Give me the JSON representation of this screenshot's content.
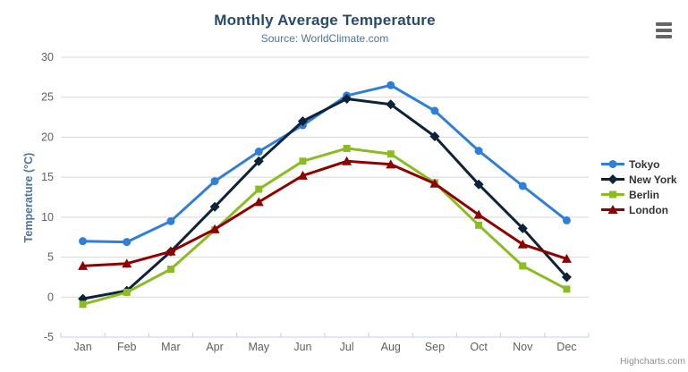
{
  "title": {
    "text": "Monthly Average Temperature"
  },
  "subtitle": {
    "text": "Source: WorldClimate.com"
  },
  "credits": {
    "text": "Highcharts.com"
  },
  "icons": {
    "export_menu": "hamburger-menu-icon"
  },
  "colors": {
    "title": "#274b6d",
    "subtitle": "#4d759e",
    "axis_title": "#4d759e",
    "axis_labels": "#606060",
    "grid_line": "#d8d8d8",
    "axis_line": "#c0d0e0",
    "legend_text": "#333333",
    "credits": "#909090",
    "menu_icon": "#666666"
  },
  "chart_data": {
    "type": "line",
    "title": "Monthly Average Temperature",
    "subtitle": "Source: WorldClimate.com",
    "xlabel": "",
    "ylabel": "Temperature (°C)",
    "ylim": [
      -5,
      30
    ],
    "yticks": [
      -5,
      0,
      5,
      10,
      15,
      20,
      25,
      30
    ],
    "grid": "horizontal",
    "legend_position": "right",
    "categories": [
      "Jan",
      "Feb",
      "Mar",
      "Apr",
      "May",
      "Jun",
      "Jul",
      "Aug",
      "Sep",
      "Oct",
      "Nov",
      "Dec"
    ],
    "series": [
      {
        "name": "Tokyo",
        "color": "#2f7ed8",
        "marker": "circle",
        "values": [
          7.0,
          6.9,
          9.5,
          14.5,
          18.2,
          21.5,
          25.2,
          26.5,
          23.3,
          18.3,
          13.9,
          9.6
        ]
      },
      {
        "name": "New York",
        "color": "#0d233a",
        "marker": "diamond",
        "values": [
          -0.2,
          0.8,
          5.7,
          11.3,
          17.0,
          22.0,
          24.8,
          24.1,
          20.1,
          14.1,
          8.6,
          2.5
        ]
      },
      {
        "name": "Berlin",
        "color": "#8bbc21",
        "marker": "square",
        "values": [
          -0.9,
          0.6,
          3.5,
          8.4,
          13.5,
          17.0,
          18.6,
          17.9,
          14.3,
          9.0,
          3.9,
          1.0
        ]
      },
      {
        "name": "London",
        "color": "#910000",
        "marker": "triangle",
        "values": [
          3.9,
          4.2,
          5.7,
          8.5,
          11.9,
          15.2,
          17.0,
          16.6,
          14.2,
          10.3,
          6.6,
          4.8
        ]
      }
    ]
  }
}
